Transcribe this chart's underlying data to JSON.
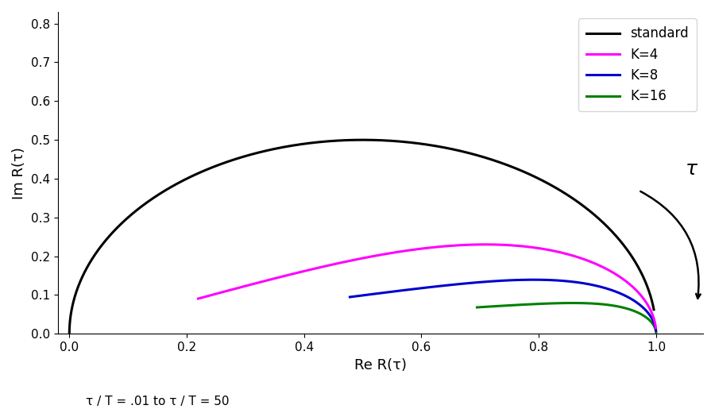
{
  "xlabel": "Re R(τ)",
  "ylabel": "Im R(τ)",
  "xlim": [
    -0.02,
    1.08
  ],
  "ylim": [
    0.0,
    0.83
  ],
  "xticks": [
    0.0,
    0.2,
    0.4,
    0.6,
    0.8,
    1.0
  ],
  "yticks": [
    0.0,
    0.1,
    0.2,
    0.3,
    0.4,
    0.5,
    0.6,
    0.7,
    0.8
  ],
  "tau_min": 0.01,
  "tau_max": 50,
  "colors": {
    "standard": "#000000",
    "K4": "#ff00ff",
    "K8": "#0000cd",
    "K16": "#008000"
  },
  "line_width": 2.2,
  "annotation_text": "τ / T = .01 to τ / T = 50",
  "tau_label": "τ"
}
